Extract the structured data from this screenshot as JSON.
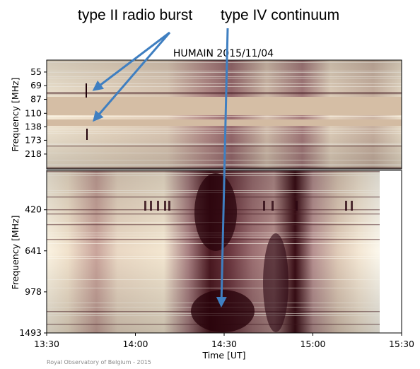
{
  "annotations": {
    "type2_label": "type II radio  burst",
    "type4_label": "type IV continuum",
    "arrow_color": "#3f7fc1"
  },
  "credit": "Royal Observatory of Belgium - 2015",
  "colors": {
    "low": "#fffdf2",
    "mid": "#c9a49a",
    "high": "#250008",
    "band": "#d5bea5"
  },
  "chart_data": [
    {
      "type": "heatmap",
      "title": "HUMAIN 2015/11/04",
      "ylabel": "Frequency [MHz]",
      "xlabel": "",
      "yticks": [
        "55",
        "69",
        "87",
        "110",
        "138",
        "173",
        "218"
      ],
      "xlim": [
        "13:30",
        "15:30"
      ],
      "ylim_mhz": [
        45,
        280
      ],
      "y_inverted": true,
      "features": [
        {
          "name": "type II radio burst",
          "time": "13:44",
          "freq_mhz": [
            69,
            138
          ]
        }
      ]
    },
    {
      "type": "heatmap",
      "title": "",
      "ylabel": "Frequency [MHz]",
      "xlabel": "Time [UT]",
      "yticks": [
        "420",
        "641",
        "978",
        "1493"
      ],
      "xticks": [
        "13:30",
        "14:00",
        "14:30",
        "15:00",
        "15:30"
      ],
      "xlim": [
        "13:30",
        "15:30"
      ],
      "ylim_mhz": [
        280,
        1493
      ],
      "y_inverted": true,
      "features": [
        {
          "name": "type IV continuum",
          "time": "14:30",
          "freq_mhz": [
            280,
            1493
          ]
        }
      ]
    }
  ]
}
